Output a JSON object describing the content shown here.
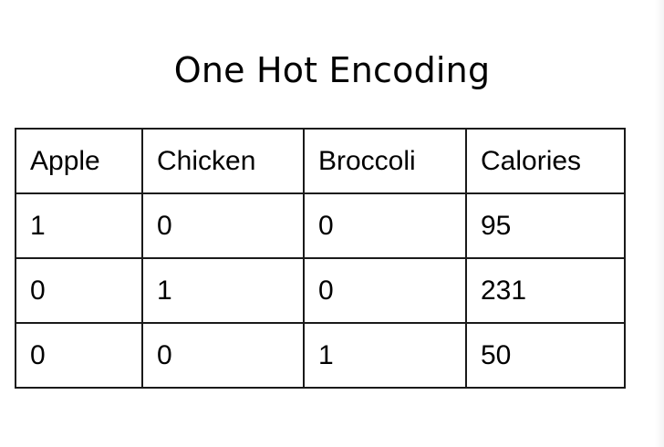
{
  "title": "One Hot Encoding",
  "table": {
    "headers": [
      "Apple",
      "Chicken",
      "Broccoli",
      "Calories"
    ],
    "rows": [
      [
        "1",
        "0",
        "0",
        "95"
      ],
      [
        "0",
        "1",
        "0",
        "231"
      ],
      [
        "0",
        "0",
        "1",
        "50"
      ]
    ]
  }
}
